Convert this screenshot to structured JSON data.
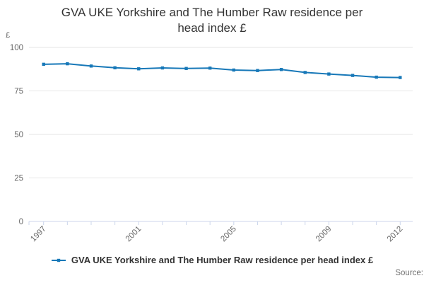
{
  "title_lines": [
    "GVA UKE Yorkshire and The Humber Raw residence per",
    "head index £"
  ],
  "y_unit_label": "£",
  "source_label": "Source:",
  "legend_label": "GVA UKE Yorkshire and The Humber Raw residence per head index £",
  "colors": {
    "series": "#1778b8",
    "grid": "#e6e6e6",
    "axis": "#ccd6eb",
    "tick_label": "#666666",
    "title": "#333333",
    "legend_text": "#333333",
    "source_text": "#707070"
  },
  "chart_data": {
    "type": "line",
    "title": "GVA UKE Yorkshire and The Humber Raw residence per head index £",
    "xlabel": "",
    "ylabel": "£",
    "ylim": [
      0,
      100
    ],
    "yticks": [
      0,
      25,
      50,
      75,
      100
    ],
    "x": [
      1997,
      1998,
      1999,
      2000,
      2001,
      2002,
      2003,
      2004,
      2005,
      2006,
      2007,
      2008,
      2009,
      2010,
      2011,
      2012
    ],
    "x_labeled_ticks": [
      1997,
      2001,
      2005,
      2009,
      2012
    ],
    "series": [
      {
        "name": "GVA UKE Yorkshire and The Humber Raw residence per head index £",
        "values": [
          90.3,
          90.6,
          89.3,
          88.3,
          87.7,
          88.2,
          87.9,
          88.1,
          87.0,
          86.7,
          87.3,
          85.6,
          84.7,
          83.9,
          82.9,
          82.7
        ]
      }
    ],
    "grid": "horizontal",
    "legend_position": "bottom"
  }
}
